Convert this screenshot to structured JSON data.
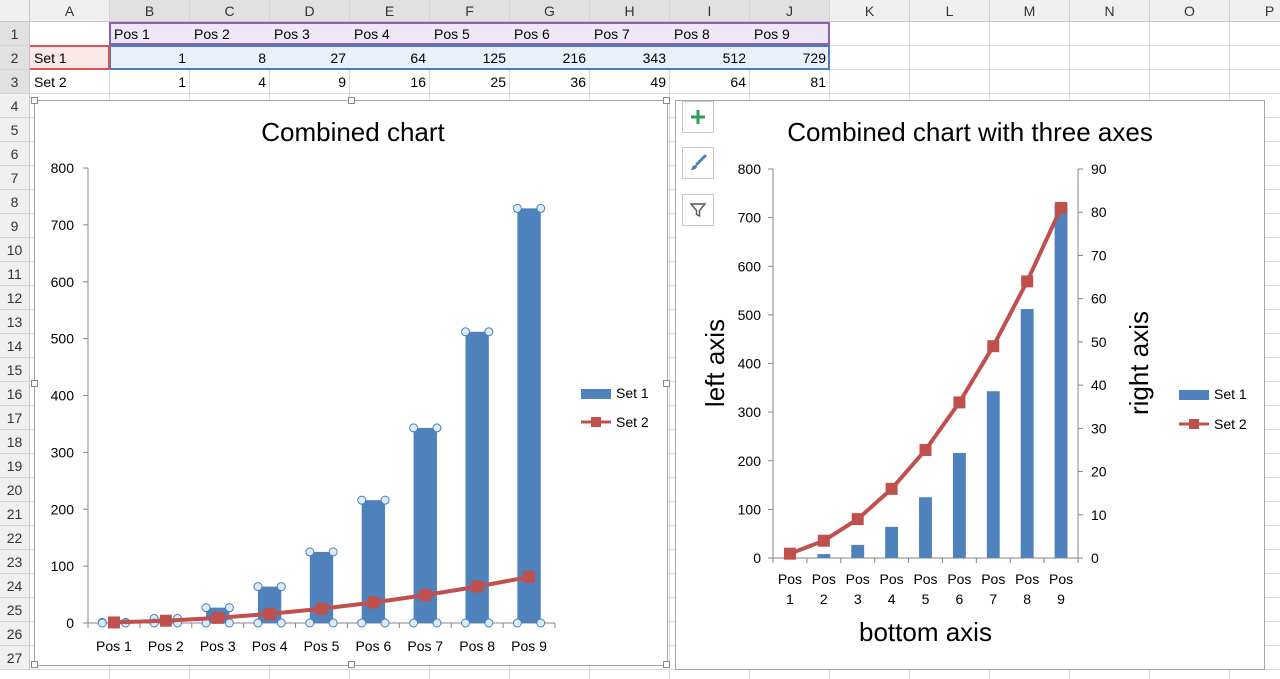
{
  "spreadsheet": {
    "columns": [
      "A",
      "B",
      "C",
      "D",
      "E",
      "F",
      "G",
      "H",
      "I",
      "J",
      "K",
      "L",
      "M",
      "N",
      "O",
      "P"
    ],
    "rows": [
      "1",
      "2",
      "3",
      "4",
      "5",
      "6",
      "7",
      "8",
      "9",
      "10",
      "11",
      "12",
      "13",
      "14",
      "15",
      "16",
      "17",
      "18",
      "19",
      "20",
      "21",
      "22",
      "23",
      "24",
      "25",
      "26",
      "27"
    ],
    "header_row": [
      "Pos 1",
      "Pos 2",
      "Pos 3",
      "Pos 4",
      "Pos 5",
      "Pos 6",
      "Pos 7",
      "Pos 8",
      "Pos 9"
    ],
    "data_rows": [
      {
        "label": "Set 1",
        "values": [
          "1",
          "8",
          "27",
          "64",
          "125",
          "216",
          "343",
          "512",
          "729"
        ]
      },
      {
        "label": "Set 2",
        "values": [
          "1",
          "4",
          "9",
          "16",
          "25",
          "36",
          "49",
          "64",
          "81"
        ]
      }
    ]
  },
  "chart_tools": {
    "add_element_icon": "plus-icon",
    "style_icon": "brush-icon",
    "filter_icon": "filter-icon"
  },
  "chart_data": [
    {
      "type": "bar",
      "title": "Combined chart",
      "categories": [
        "Pos 1",
        "Pos 2",
        "Pos 3",
        "Pos 4",
        "Pos 5",
        "Pos 6",
        "Pos 7",
        "Pos 8",
        "Pos 9"
      ],
      "ylim": [
        0,
        800
      ],
      "yticks": [
        "0",
        "100",
        "200",
        "300",
        "400",
        "500",
        "600",
        "700",
        "800"
      ],
      "legend_position": "right",
      "selected_series": "Set 1",
      "series": [
        {
          "name": "Set 1",
          "kind": "bar",
          "values": [
            1,
            8,
            27,
            64,
            125,
            216,
            343,
            512,
            729
          ],
          "color": "#4f81bd"
        },
        {
          "name": "Set 2",
          "kind": "line",
          "values": [
            1,
            4,
            9,
            16,
            25,
            36,
            49,
            64,
            81
          ],
          "color": "#c0504d"
        }
      ]
    },
    {
      "type": "bar",
      "title": "Combined chart with three axes",
      "xlabel": "bottom axis",
      "ylabel": "left axis",
      "y2label": "right axis",
      "categories": [
        "Pos 1",
        "Pos 2",
        "Pos 3",
        "Pos 4",
        "Pos 5",
        "Pos 6",
        "Pos 7",
        "Pos 8",
        "Pos 9"
      ],
      "ylim": [
        0,
        800
      ],
      "yticks": [
        "0",
        "100",
        "200",
        "300",
        "400",
        "500",
        "600",
        "700",
        "800"
      ],
      "y2lim": [
        0,
        90
      ],
      "y2ticks": [
        "0",
        "10",
        "20",
        "30",
        "40",
        "50",
        "60",
        "70",
        "80",
        "90"
      ],
      "legend_position": "right",
      "series": [
        {
          "name": "Set 1",
          "kind": "bar",
          "axis": "left",
          "values": [
            1,
            8,
            27,
            64,
            125,
            216,
            343,
            512,
            729
          ],
          "color": "#4f81bd"
        },
        {
          "name": "Set 2",
          "kind": "line",
          "axis": "right",
          "values": [
            1,
            4,
            9,
            16,
            25,
            36,
            49,
            64,
            81
          ],
          "color": "#c0504d"
        }
      ]
    }
  ]
}
